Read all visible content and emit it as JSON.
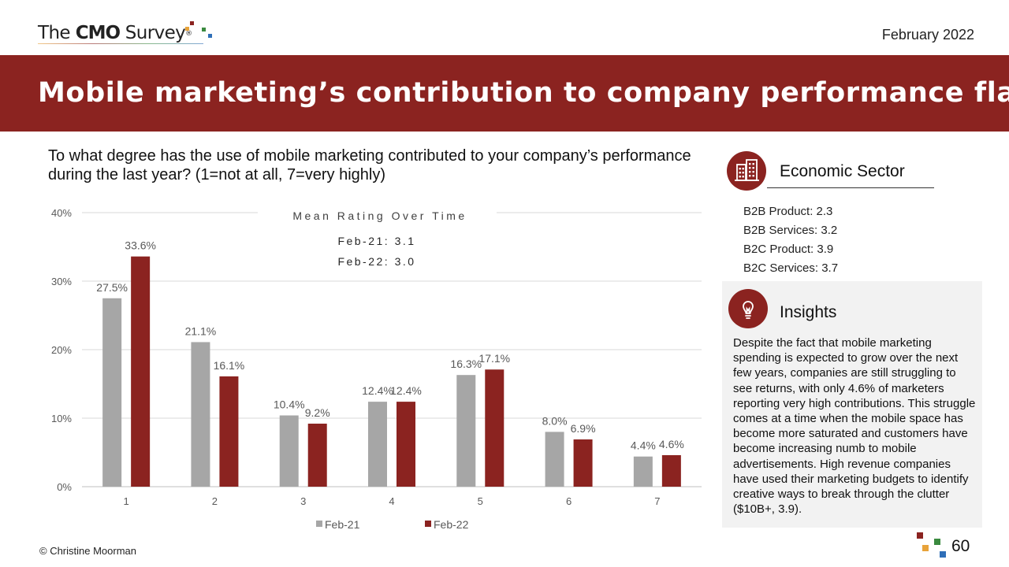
{
  "header": {
    "logo_prefix": "The ",
    "logo_bold": "CMO",
    "logo_suffix": " Survey",
    "logo_reg": "®",
    "date": "February 2022",
    "title": "Mobile marketing’s contribution to company performance flat"
  },
  "question": "To what degree has the use of mobile marketing contributed to your company’s performance during the last year? (1=not at all, 7=very highly)",
  "chart_data": {
    "type": "bar",
    "categories": [
      "1",
      "2",
      "3",
      "4",
      "5",
      "6",
      "7"
    ],
    "series": [
      {
        "name": "Feb-21",
        "values": [
          27.5,
          21.1,
          10.4,
          12.4,
          16.3,
          8.0,
          4.4
        ],
        "color": "#a6a6a6"
      },
      {
        "name": "Feb-22",
        "values": [
          33.6,
          16.1,
          9.2,
          12.4,
          17.1,
          6.9,
          4.6
        ],
        "color": "#8b2320"
      }
    ],
    "data_labels": [
      [
        "27.5%",
        "21.1%",
        "10.4%",
        "12.4%",
        "16.3%",
        "8.0%",
        "4.4%"
      ],
      [
        "33.6%",
        "16.1%",
        "9.2%",
        "12.4%",
        "17.1%",
        "6.9%",
        "4.6%"
      ]
    ],
    "y_ticks": [
      "0%",
      "10%",
      "20%",
      "30%",
      "40%"
    ],
    "ylim": [
      0,
      40
    ],
    "grid": true,
    "legend": "bottom",
    "annotation": {
      "title": "Mean Rating Over Time",
      "lines": [
        "Feb-21: 3.1",
        "Feb-22: 3.0"
      ]
    }
  },
  "sector": {
    "icon": "building-icon",
    "title": "Economic Sector",
    "items": [
      "B2B Product: 2.3",
      "B2B Services: 3.2",
      "B2C Product: 3.9",
      "B2C Services: 3.7"
    ]
  },
  "insights": {
    "icon": "lightbulb-icon",
    "title": "Insights",
    "body": "Despite the fact that mobile marketing spending is expected to grow over the next few years, companies are still struggling to see returns, with only 4.6% of marketers reporting very high contributions. This struggle comes at a time when the mobile space has become more saturated and customers have become increasing numb to mobile advertisements. High revenue companies have used their marketing budgets to identify creative ways to break through the clutter ($10B+, 3.9)."
  },
  "footer": {
    "copyright": "© Christine Moorman",
    "page_number": "60"
  },
  "colors": {
    "brand_red": "#8b2320",
    "feb21_gray": "#a6a6a6",
    "panel_gray": "#f2f2f2"
  }
}
